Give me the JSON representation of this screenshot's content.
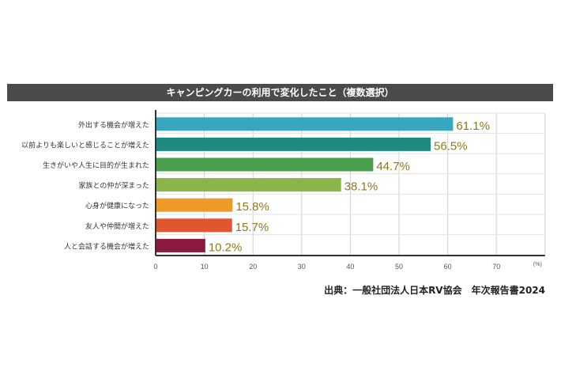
{
  "chart_data": {
    "type": "bar",
    "orientation": "horizontal",
    "title": "キャンピングカーの利用で変化したこと（複数選択）",
    "categories": [
      "外出する機会が増えた",
      "以前よりも楽しいと感じることが増えた",
      "生きがいや人生に目的が生まれた",
      "家族との仲が深まった",
      "心身が健康になった",
      "友人や仲間が増えた",
      "人と会話する機会が増えた"
    ],
    "values": [
      61.1,
      56.5,
      44.7,
      38.1,
      15.8,
      15.7,
      10.2
    ],
    "value_labels": [
      "61.1%",
      "56.5%",
      "44.7%",
      "38.1%",
      "15.8%",
      "15.7%",
      "10.2%"
    ],
    "colors": [
      "#3aa6bd",
      "#1f8a7e",
      "#4aa04c",
      "#8ab548",
      "#ee9a26",
      "#e0562e",
      "#8b1a3e"
    ],
    "label_color": "#8a7a1c",
    "xlim": [
      0,
      80
    ],
    "xticks": [
      "0",
      "10",
      "20",
      "30",
      "40",
      "50",
      "60",
      "70"
    ],
    "xunit": "(%)",
    "grid": true,
    "source": "出典：一般社団法人日本RV協会　年次報告書2024"
  }
}
